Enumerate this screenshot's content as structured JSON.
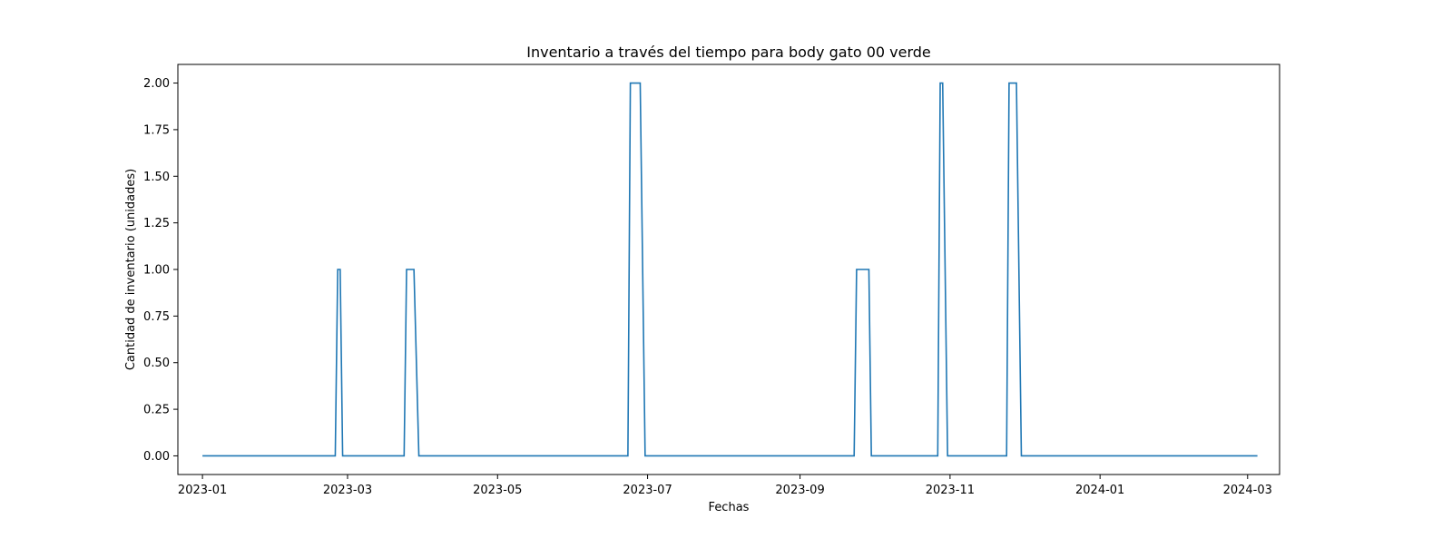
{
  "chart_data": {
    "type": "line",
    "title": "Inventario a través del tiempo para body gato 00 verde",
    "xlabel": "Fechas",
    "ylabel": "Cantidad de inventario (unidades)",
    "x_axis_type": "date",
    "xlim": [
      "2022-12-22",
      "2024-03-14"
    ],
    "ylim": [
      -0.1,
      2.1
    ],
    "grid": false,
    "legend": "none",
    "line_color": "#1f77b4",
    "x_ticks": [
      {
        "value": "2023-01-01",
        "label": "2023-01"
      },
      {
        "value": "2023-03-01",
        "label": "2023-03"
      },
      {
        "value": "2023-05-01",
        "label": "2023-05"
      },
      {
        "value": "2023-07-01",
        "label": "2023-07"
      },
      {
        "value": "2023-09-01",
        "label": "2023-09"
      },
      {
        "value": "2023-11-01",
        "label": "2023-11"
      },
      {
        "value": "2024-01-01",
        "label": "2024-01"
      },
      {
        "value": "2024-03-01",
        "label": "2024-03"
      }
    ],
    "y_ticks": [
      {
        "value": 0,
        "label": "0.00"
      },
      {
        "value": 0.25,
        "label": "0.25"
      },
      {
        "value": 0.5,
        "label": "0.50"
      },
      {
        "value": 0.75,
        "label": "0.75"
      },
      {
        "value": 1,
        "label": "1.00"
      },
      {
        "value": 1.25,
        "label": "1.25"
      },
      {
        "value": 1.5,
        "label": "1.50"
      },
      {
        "value": 1.75,
        "label": "1.75"
      },
      {
        "value": 2,
        "label": "2.00"
      }
    ],
    "series": [
      {
        "points": [
          {
            "x": "2023-01-01",
            "y": 0
          },
          {
            "x": "2023-02-24",
            "y": 0
          },
          {
            "x": "2023-02-25",
            "y": 1
          },
          {
            "x": "2023-02-26",
            "y": 1
          },
          {
            "x": "2023-02-27",
            "y": 0
          },
          {
            "x": "2023-03-24",
            "y": 0
          },
          {
            "x": "2023-03-25",
            "y": 1
          },
          {
            "x": "2023-03-28",
            "y": 1
          },
          {
            "x": "2023-03-30",
            "y": 0
          },
          {
            "x": "2023-06-23",
            "y": 0
          },
          {
            "x": "2023-06-24",
            "y": 2
          },
          {
            "x": "2023-06-28",
            "y": 2
          },
          {
            "x": "2023-06-30",
            "y": 0
          },
          {
            "x": "2023-09-23",
            "y": 0
          },
          {
            "x": "2023-09-24",
            "y": 1
          },
          {
            "x": "2023-09-29",
            "y": 1
          },
          {
            "x": "2023-09-30",
            "y": 0
          },
          {
            "x": "2023-10-27",
            "y": 0
          },
          {
            "x": "2023-10-28",
            "y": 2
          },
          {
            "x": "2023-10-29",
            "y": 2
          },
          {
            "x": "2023-10-31",
            "y": 0
          },
          {
            "x": "2023-11-24",
            "y": 0
          },
          {
            "x": "2023-11-25",
            "y": 2
          },
          {
            "x": "2023-11-28",
            "y": 2
          },
          {
            "x": "2023-11-30",
            "y": 0
          },
          {
            "x": "2024-03-05",
            "y": 0
          }
        ]
      }
    ]
  }
}
